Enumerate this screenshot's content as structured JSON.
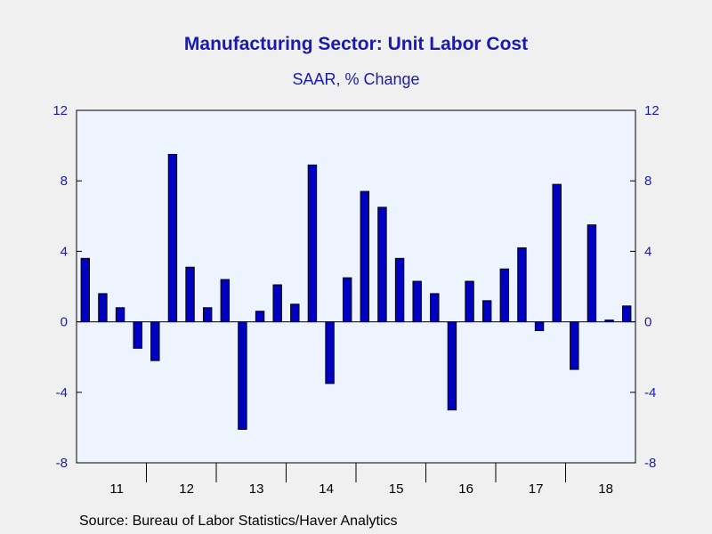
{
  "chart_data": {
    "type": "bar",
    "title": "Manufacturing Sector: Unit Labor Cost",
    "subtitle": "SAAR, % Change",
    "source": "Source:  Bureau of Labor Statistics/Haver Analytics",
    "ylim": [
      -8,
      12
    ],
    "yticks": [
      -8,
      -4,
      0,
      4,
      8,
      12
    ],
    "y_axis_sides": "left and right",
    "grid": false,
    "colors": {
      "bar": "#0000c0",
      "plot_bg": "#eef4ff",
      "text": "#1a1ab0"
    },
    "year_labels": [
      "11",
      "12",
      "13",
      "14",
      "15",
      "16",
      "17",
      "18"
    ],
    "categories": [
      "2011 Q1",
      "2011 Q2",
      "2011 Q3",
      "2011 Q4",
      "2012 Q1",
      "2012 Q2",
      "2012 Q3",
      "2012 Q4",
      "2013 Q1",
      "2013 Q2",
      "2013 Q3",
      "2013 Q4",
      "2014 Q1",
      "2014 Q2",
      "2014 Q3",
      "2014 Q4",
      "2015 Q1",
      "2015 Q2",
      "2015 Q3",
      "2015 Q4",
      "2016 Q1",
      "2016 Q2",
      "2016 Q3",
      "2016 Q4",
      "2017 Q1",
      "2017 Q2",
      "2017 Q3",
      "2017 Q4",
      "2018 Q1",
      "2018 Q2",
      "2018 Q3",
      "2018 Q4"
    ],
    "values": [
      3.6,
      1.6,
      0.8,
      -1.5,
      -2.2,
      9.5,
      3.1,
      0.8,
      2.4,
      -6.1,
      0.6,
      2.1,
      1.0,
      8.9,
      -3.5,
      2.5,
      7.4,
      6.5,
      3.6,
      2.3,
      1.6,
      -5.0,
      2.3,
      1.2,
      3.0,
      4.2,
      -0.5,
      7.8,
      -2.7,
      5.5,
      0.1,
      0.9
    ]
  }
}
